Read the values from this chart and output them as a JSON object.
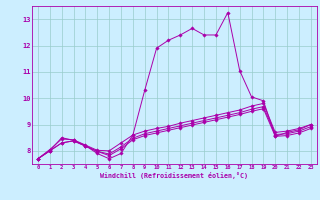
{
  "xlabel": "Windchill (Refroidissement éolien,°C)",
  "bg_color": "#cceeff",
  "grid_color": "#99cccc",
  "line_color": "#aa00aa",
  "xlim": [
    -0.5,
    23.5
  ],
  "ylim": [
    7.5,
    13.5
  ],
  "xticks": [
    0,
    1,
    2,
    3,
    4,
    5,
    6,
    7,
    8,
    9,
    10,
    11,
    12,
    13,
    14,
    15,
    16,
    17,
    18,
    19,
    20,
    21,
    22,
    23
  ],
  "yticks": [
    8,
    9,
    10,
    11,
    12,
    13
  ],
  "series": [
    [
      7.7,
      8.0,
      8.5,
      8.4,
      8.2,
      7.9,
      7.7,
      7.9,
      8.6,
      10.3,
      11.9,
      12.2,
      12.4,
      12.65,
      12.4,
      12.4,
      13.25,
      11.05,
      10.05,
      9.9,
      8.55,
      8.7,
      8.8,
      9.0
    ],
    [
      7.7,
      8.05,
      8.45,
      8.42,
      8.22,
      8.02,
      8.0,
      8.3,
      8.6,
      8.75,
      8.85,
      8.93,
      9.05,
      9.15,
      9.25,
      9.35,
      9.45,
      9.55,
      9.7,
      9.8,
      8.7,
      8.75,
      8.85,
      9.0
    ],
    [
      7.7,
      8.0,
      8.3,
      8.38,
      8.18,
      7.98,
      7.88,
      8.15,
      8.48,
      8.65,
      8.75,
      8.85,
      8.95,
      9.05,
      9.15,
      9.25,
      9.35,
      9.45,
      9.58,
      9.68,
      8.62,
      8.65,
      8.75,
      8.92
    ],
    [
      7.7,
      8.0,
      8.3,
      8.38,
      8.18,
      7.98,
      7.82,
      8.08,
      8.42,
      8.58,
      8.68,
      8.78,
      8.88,
      8.98,
      9.08,
      9.18,
      9.28,
      9.38,
      9.5,
      9.6,
      8.55,
      8.58,
      8.68,
      8.85
    ]
  ]
}
